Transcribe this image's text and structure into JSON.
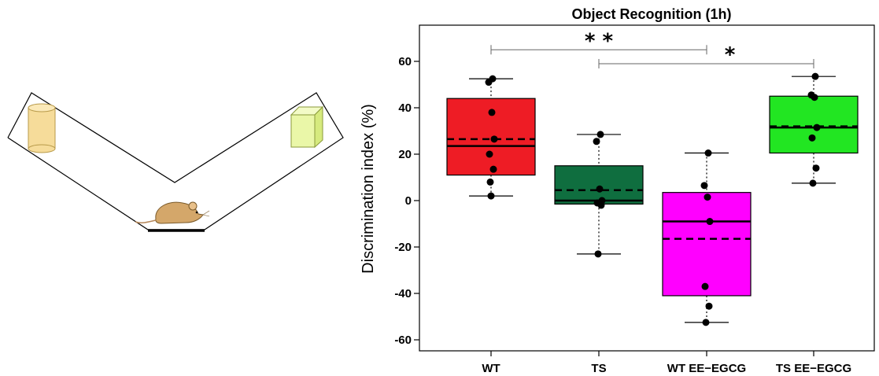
{
  "chart_data": {
    "type": "box",
    "title": "Object Recognition (1h)",
    "ylabel": "Discrimination index (%)",
    "xlabel": "",
    "ylim": [
      -65,
      75
    ],
    "yticks": [
      -60,
      -40,
      -20,
      0,
      20,
      40,
      60
    ],
    "grid": false,
    "categories": [
      "WT",
      "TS",
      "WT EE−EGCG",
      "TS EE−EGCG"
    ],
    "colors": [
      "#ee1c25",
      "#0f6e3f",
      "#ff00ff",
      "#22e622"
    ],
    "boxes": [
      {
        "q1": 11,
        "median": 23.5,
        "mean": 26.5,
        "q3": 44,
        "whisker_low": 2,
        "whisker_high": 52.5,
        "points": [
          52.5,
          51,
          38,
          26.5,
          20,
          13.5,
          8,
          2
        ]
      },
      {
        "q1": -1.5,
        "median": 0,
        "mean": 4.5,
        "q3": 15,
        "whisker_low": -23,
        "whisker_high": 28.5,
        "points": [
          28.5,
          25.5,
          5,
          0,
          -1,
          -2,
          -23
        ]
      },
      {
        "q1": -41,
        "median": -9,
        "mean": -16.5,
        "q3": 3.5,
        "whisker_low": -52.5,
        "whisker_high": 20.5,
        "points": [
          20.5,
          6.5,
          1.5,
          -9,
          -37,
          -45.5,
          -52.5
        ]
      },
      {
        "q1": 20.5,
        "median": 31.5,
        "mean": 32,
        "q3": 45,
        "whisker_low": 7.5,
        "whisker_high": 53.5,
        "points": [
          53.5,
          45.5,
          44.5,
          31.5,
          27,
          14,
          7.5
        ]
      }
    ],
    "significance": [
      {
        "from": 0,
        "to": 2,
        "label": "* *",
        "y": 65
      },
      {
        "from": 1,
        "to": 3,
        "label": "*",
        "y": 59
      }
    ]
  },
  "illustration": {
    "description_icons": [
      "v-maze",
      "cylinder-object",
      "cube-object",
      "mouse"
    ]
  }
}
